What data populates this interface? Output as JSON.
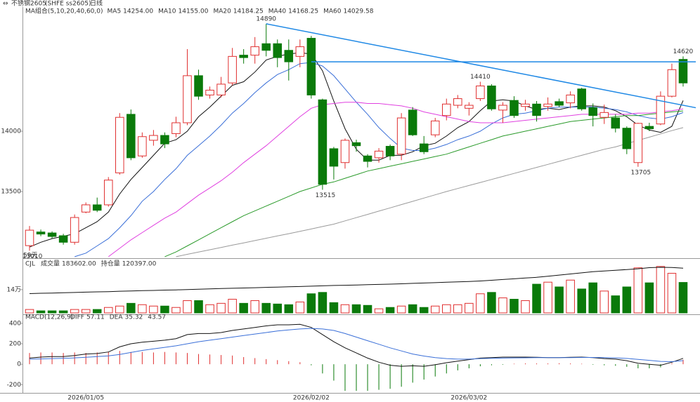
{
  "chart_data": [
    {
      "type": "candlestick",
      "title": "不锈钢2605",
      "subtitle": "(SHFE ss2605)",
      "period": "日线",
      "indicator": "MA组合(5,10,20,40,60,0)",
      "up_color": "#e03030",
      "down_color": "#0a7a0a",
      "open": [
        13052,
        13165,
        13157,
        13134,
        13080,
        13330,
        13390,
        13390,
        13655,
        14140,
        13795,
        13925,
        13965,
        13980,
        14070,
        14460,
        14300,
        14300,
        14400,
        14630,
        14630,
        14725,
        14725,
        14670,
        14620,
        14770,
        14260,
        13855,
        13740,
        13905,
        13795,
        13780,
        13875,
        13810,
        14175,
        13895,
        13970,
        14130,
        14215,
        14190,
        14270,
        14375,
        14175,
        14255,
        14205,
        14225,
        14205,
        14245,
        14235,
        14350,
        14195,
        14115,
        14110,
        14025,
        13740,
        14040,
        14060,
        14290,
        14595
      ],
      "high": [
        13215,
        13185,
        13170,
        13150,
        13310,
        13410,
        13450,
        13620,
        14150,
        14180,
        13990,
        14010,
        13990,
        14120,
        14680,
        14510,
        14370,
        14450,
        14690,
        14680,
        14780,
        14890,
        14760,
        14760,
        14760,
        14790,
        14270,
        13870,
        13940,
        13930,
        13810,
        13860,
        13890,
        14150,
        14200,
        13960,
        14110,
        14270,
        14300,
        14240,
        14410,
        14390,
        14240,
        14290,
        14260,
        14250,
        14280,
        14270,
        14330,
        14360,
        14230,
        14220,
        14140,
        14040,
        14070,
        14070,
        14330,
        14560,
        14620
      ],
      "low": [
        13010,
        13130,
        13110,
        13060,
        13060,
        13320,
        13330,
        13375,
        13640,
        13760,
        13780,
        13880,
        13860,
        13950,
        14050,
        14260,
        14270,
        14280,
        14380,
        14560,
        14560,
        14620,
        14530,
        14420,
        14530,
        14270,
        13515,
        13600,
        13690,
        13830,
        13700,
        13740,
        13760,
        13760,
        13960,
        13810,
        13950,
        14090,
        14190,
        14130,
        14250,
        14170,
        14070,
        14110,
        14170,
        14080,
        14170,
        14200,
        14190,
        14170,
        14040,
        14060,
        13990,
        13810,
        13705,
        14000,
        14050,
        14280,
        14370
      ],
      "close": [
        13180,
        13148,
        13128,
        13080,
        13285,
        13390,
        13345,
        13595,
        14115,
        13780,
        13955,
        13965,
        13895,
        14070,
        14460,
        14290,
        14340,
        14390,
        14620,
        14610,
        14700,
        14670,
        14610,
        14575,
        14700,
        14300,
        13560,
        13710,
        13925,
        13880,
        13750,
        13835,
        13795,
        14110,
        13970,
        13830,
        14085,
        14225,
        14270,
        14215,
        14375,
        14185,
        14215,
        14130,
        14225,
        14130,
        14225,
        14215,
        14300,
        14185,
        14130,
        14155,
        14025,
        13855,
        14065,
        14020,
        14290,
        14510,
        14400
      ],
      "high_labels": [
        null,
        null,
        null,
        null,
        null,
        null,
        null,
        null,
        null,
        null,
        null,
        null,
        null,
        null,
        null,
        null,
        null,
        null,
        null,
        null,
        null,
        "14890",
        null,
        null,
        null,
        null,
        null,
        null,
        null,
        null,
        null,
        null,
        null,
        null,
        null,
        null,
        null,
        null,
        null,
        null,
        "14410",
        null,
        null,
        null,
        null,
        null,
        null,
        null,
        null,
        null,
        null,
        null,
        null,
        null,
        null,
        null,
        null,
        null,
        "14620"
      ],
      "low_labels": [
        "13010",
        null,
        null,
        null,
        null,
        null,
        null,
        null,
        null,
        null,
        null,
        null,
        null,
        null,
        null,
        null,
        null,
        null,
        null,
        null,
        null,
        null,
        null,
        null,
        null,
        null,
        "13515",
        null,
        null,
        null,
        null,
        null,
        null,
        null,
        null,
        null,
        null,
        null,
        null,
        null,
        null,
        null,
        null,
        null,
        null,
        null,
        null,
        null,
        null,
        null,
        null,
        null,
        null,
        null,
        "13705",
        null,
        null,
        null,
        null
      ],
      "note": "59天",
      "series": [
        {
          "name": "MA5",
          "legend_value": "14254.00",
          "color": "#111111",
          "values": [
            13040,
            13080,
            13110,
            13130,
            13150,
            13200,
            13250,
            13330,
            13480,
            13600,
            13700,
            13800,
            13900,
            13930,
            14000,
            14120,
            14200,
            14290,
            14380,
            14410,
            14490,
            14590,
            14620,
            14640,
            14650,
            14640,
            14500,
            14250,
            14020,
            13850,
            13760,
            13760,
            13800,
            13800,
            13830,
            13880,
            13900,
            13960,
            14030,
            14080,
            14170,
            14250,
            14260,
            14250,
            14210,
            14180,
            14190,
            14180,
            14200,
            14210,
            14210,
            14200,
            14170,
            14120,
            14050,
            14010,
            13990,
            14040,
            14254
          ]
        },
        {
          "name": "MA10",
          "legend_value": "14155.00",
          "color": "#3a6fd8",
          "values": [
            null,
            null,
            null,
            null,
            12960,
            12990,
            13050,
            13110,
            13200,
            13300,
            13420,
            13500,
            13600,
            13690,
            13800,
            13880,
            13960,
            14050,
            14150,
            14230,
            14320,
            14400,
            14470,
            14510,
            14560,
            14570,
            14540,
            14460,
            14350,
            14240,
            14140,
            14030,
            13940,
            13860,
            13840,
            13840,
            13860,
            13890,
            13930,
            13960,
            14000,
            14060,
            14110,
            14140,
            14150,
            14170,
            14190,
            14200,
            14200,
            14200,
            14200,
            14190,
            14180,
            14160,
            14130,
            14110,
            14100,
            14120,
            14155
          ]
        },
        {
          "name": "MA20",
          "legend_value": "14184.25",
          "color": "#e040e0",
          "values": [
            null,
            null,
            null,
            null,
            null,
            null,
            null,
            12960,
            13030,
            13100,
            13160,
            13220,
            13280,
            13330,
            13400,
            13470,
            13530,
            13590,
            13660,
            13740,
            13810,
            13880,
            13960,
            14040,
            14120,
            14190,
            14220,
            14230,
            14240,
            14240,
            14230,
            14230,
            14220,
            14210,
            14190,
            14160,
            14140,
            14120,
            14100,
            14080,
            14070,
            14070,
            14070,
            14080,
            14090,
            14100,
            14110,
            14120,
            14130,
            14140,
            14140,
            14140,
            14140,
            14140,
            14150,
            14150,
            14160,
            14170,
            14184.25
          ]
        },
        {
          "name": "MA40",
          "legend_value": "14168.25",
          "color": "#2a9a2a",
          "values": [
            null,
            null,
            null,
            null,
            null,
            null,
            null,
            null,
            null,
            null,
            null,
            null,
            12960,
            13000,
            13050,
            13100,
            13150,
            13200,
            13250,
            13300,
            13340,
            13380,
            13420,
            13460,
            13500,
            13530,
            13560,
            13580,
            13610,
            13640,
            13670,
            13690,
            13710,
            13730,
            13750,
            13770,
            13790,
            13810,
            13840,
            13870,
            13900,
            13930,
            13960,
            13980,
            14000,
            14020,
            14040,
            14060,
            14080,
            14090,
            14100,
            14110,
            14120,
            14130,
            14130,
            14140,
            14150,
            14160,
            14168.25
          ]
        },
        {
          "name": "MA60",
          "legend_value": "14029.58",
          "color": "#9a9a9a",
          "values": [
            null,
            null,
            null,
            null,
            null,
            null,
            null,
            null,
            null,
            null,
            null,
            null,
            null,
            12960,
            12980,
            12999,
            13018,
            13037,
            13056,
            13075,
            13094,
            13113,
            13132,
            13151,
            13170,
            13190,
            13210,
            13230,
            13257,
            13284,
            13311,
            13338,
            13365,
            13392,
            13419,
            13446,
            13473,
            13500,
            13525,
            13550,
            13575,
            13600,
            13625,
            13650,
            13675,
            13700,
            13725,
            13750,
            13775,
            13800,
            13825,
            13850,
            13870,
            13897,
            13924,
            13951,
            13978,
            14005,
            14029.58
          ]
        }
      ],
      "lines": [
        {
          "color": "#1e88e5",
          "points": [
            [
              21,
              14890
            ],
            [
              58,
              14215
            ]
          ]
        },
        {
          "color": "#1e88e5",
          "points": [
            [
              25,
              14575
            ],
            [
              58,
              14575
            ]
          ]
        }
      ],
      "ylim": [
        12948,
        15029
      ],
      "yticks": [
        14000,
        13500
      ]
    },
    {
      "type": "bar",
      "title": "CJL",
      "series": [
        {
          "name": "成交量",
          "legend_value": "183602.00",
          "values": [
            20600,
            12400,
            12400,
            12400,
            20600,
            20600,
            20600,
            32900,
            41200,
            57700,
            49400,
            41200,
            41200,
            32900,
            74100,
            74100,
            49400,
            57700,
            82400,
            57700,
            74100,
            57700,
            53500,
            49400,
            65900,
            115300,
            123500,
            61800,
            49400,
            49400,
            45300,
            24700,
            32900,
            41200,
            49400,
            32900,
            41200,
            49400,
            49400,
            57700,
            115300,
            123500,
            90600,
            82400,
            74100,
            173000,
            185300,
            156500,
            197700,
            144100,
            181200,
            131800,
            103000,
            156500,
            271800,
            181200,
            280000,
            238800,
            183602
          ]
        },
        {
          "name": "持仓量",
          "legend_value": "120397.00",
          "color": "#111111",
          "axis": "y2",
          "values": [
            86000,
            86500,
            86800,
            87200,
            87500,
            88000,
            88400,
            88700,
            89200,
            89600,
            90000,
            90300,
            90700,
            91000,
            91500,
            92000,
            92400,
            92800,
            93200,
            93600,
            94000,
            94400,
            94800,
            95200,
            95600,
            96000,
            96500,
            97000,
            97300,
            97600,
            98000,
            98400,
            98800,
            99300,
            99800,
            100300,
            100800,
            101300,
            101800,
            102300,
            103000,
            104000,
            105000,
            106000,
            107000,
            108000,
            109500,
            111000,
            112500,
            114000,
            115500,
            116500,
            117500,
            118500,
            119500,
            121000,
            121500,
            121200,
            120397
          ]
        }
      ],
      "ylim": [
        0,
        313000
      ],
      "yticks": [
        {
          "value": 140000,
          "label": "14万"
        }
      ],
      "y2lim": [
        60000,
        130000
      ]
    },
    {
      "type": "macd",
      "title": "MACD(12,26,9)",
      "categories": [
        null,
        null,
        null,
        null,
        null,
        "2026/01/05",
        null,
        null,
        null,
        null,
        null,
        null,
        null,
        null,
        null,
        null,
        null,
        null,
        null,
        null,
        null,
        null,
        null,
        null,
        null,
        "2026/02/02",
        null,
        null,
        null,
        null,
        null,
        null,
        null,
        null,
        null,
        null,
        null,
        null,
        null,
        "2026/03/02",
        null,
        null,
        null,
        null,
        null,
        null,
        null,
        null,
        null,
        null,
        null,
        null,
        null,
        null,
        null,
        null,
        null,
        null,
        null
      ],
      "series": [
        {
          "name": "DIFF",
          "legend_value": "57.11",
          "color": "#111111",
          "values": [
            60,
            70,
            75,
            75,
            85,
            100,
            105,
            120,
            170,
            200,
            215,
            225,
            235,
            250,
            290,
            300,
            300,
            310,
            330,
            345,
            360,
            375,
            385,
            385,
            390,
            360,
            290,
            220,
            160,
            110,
            60,
            20,
            -10,
            -20,
            -15,
            -20,
            -5,
            15,
            30,
            45,
            60,
            65,
            70,
            70,
            70,
            68,
            65,
            65,
            68,
            70,
            65,
            55,
            50,
            35,
            10,
            0,
            -10,
            20,
            57.11
          ]
        },
        {
          "name": "DEA",
          "legend_value": "35.32",
          "color": "#3a6fd8",
          "values": [
            50,
            52,
            55,
            58,
            62,
            68,
            75,
            82,
            95,
            115,
            135,
            150,
            165,
            180,
            200,
            220,
            235,
            250,
            265,
            280,
            295,
            310,
            325,
            335,
            345,
            350,
            345,
            330,
            300,
            265,
            230,
            195,
            160,
            130,
            100,
            80,
            65,
            55,
            50,
            50,
            55,
            58,
            60,
            62,
            63,
            64,
            64,
            64,
            65,
            66,
            66,
            64,
            62,
            57,
            48,
            38,
            28,
            25,
            35.32
          ]
        },
        {
          "name": "MACD",
          "legend_value": "43.57",
          "values": [
            110,
            115,
            115,
            110,
            115,
            110,
            115,
            120,
            130,
            120,
            120,
            115,
            120,
            115,
            110,
            100,
            95,
            90,
            85,
            70,
            60,
            50,
            40,
            30,
            20,
            -10,
            -90,
            -160,
            -260,
            -260,
            -260,
            -250,
            -240,
            -220,
            -180,
            -150,
            -120,
            -90,
            -60,
            -40,
            -20,
            -10,
            -5,
            5,
            8,
            8,
            8,
            10,
            8,
            5,
            -5,
            -10,
            -15,
            -25,
            -40,
            -40,
            -30,
            10,
            43.57
          ]
        }
      ],
      "ylim": [
        -280,
        440
      ],
      "yticks": [
        400,
        200,
        0,
        -200
      ]
    }
  ]
}
